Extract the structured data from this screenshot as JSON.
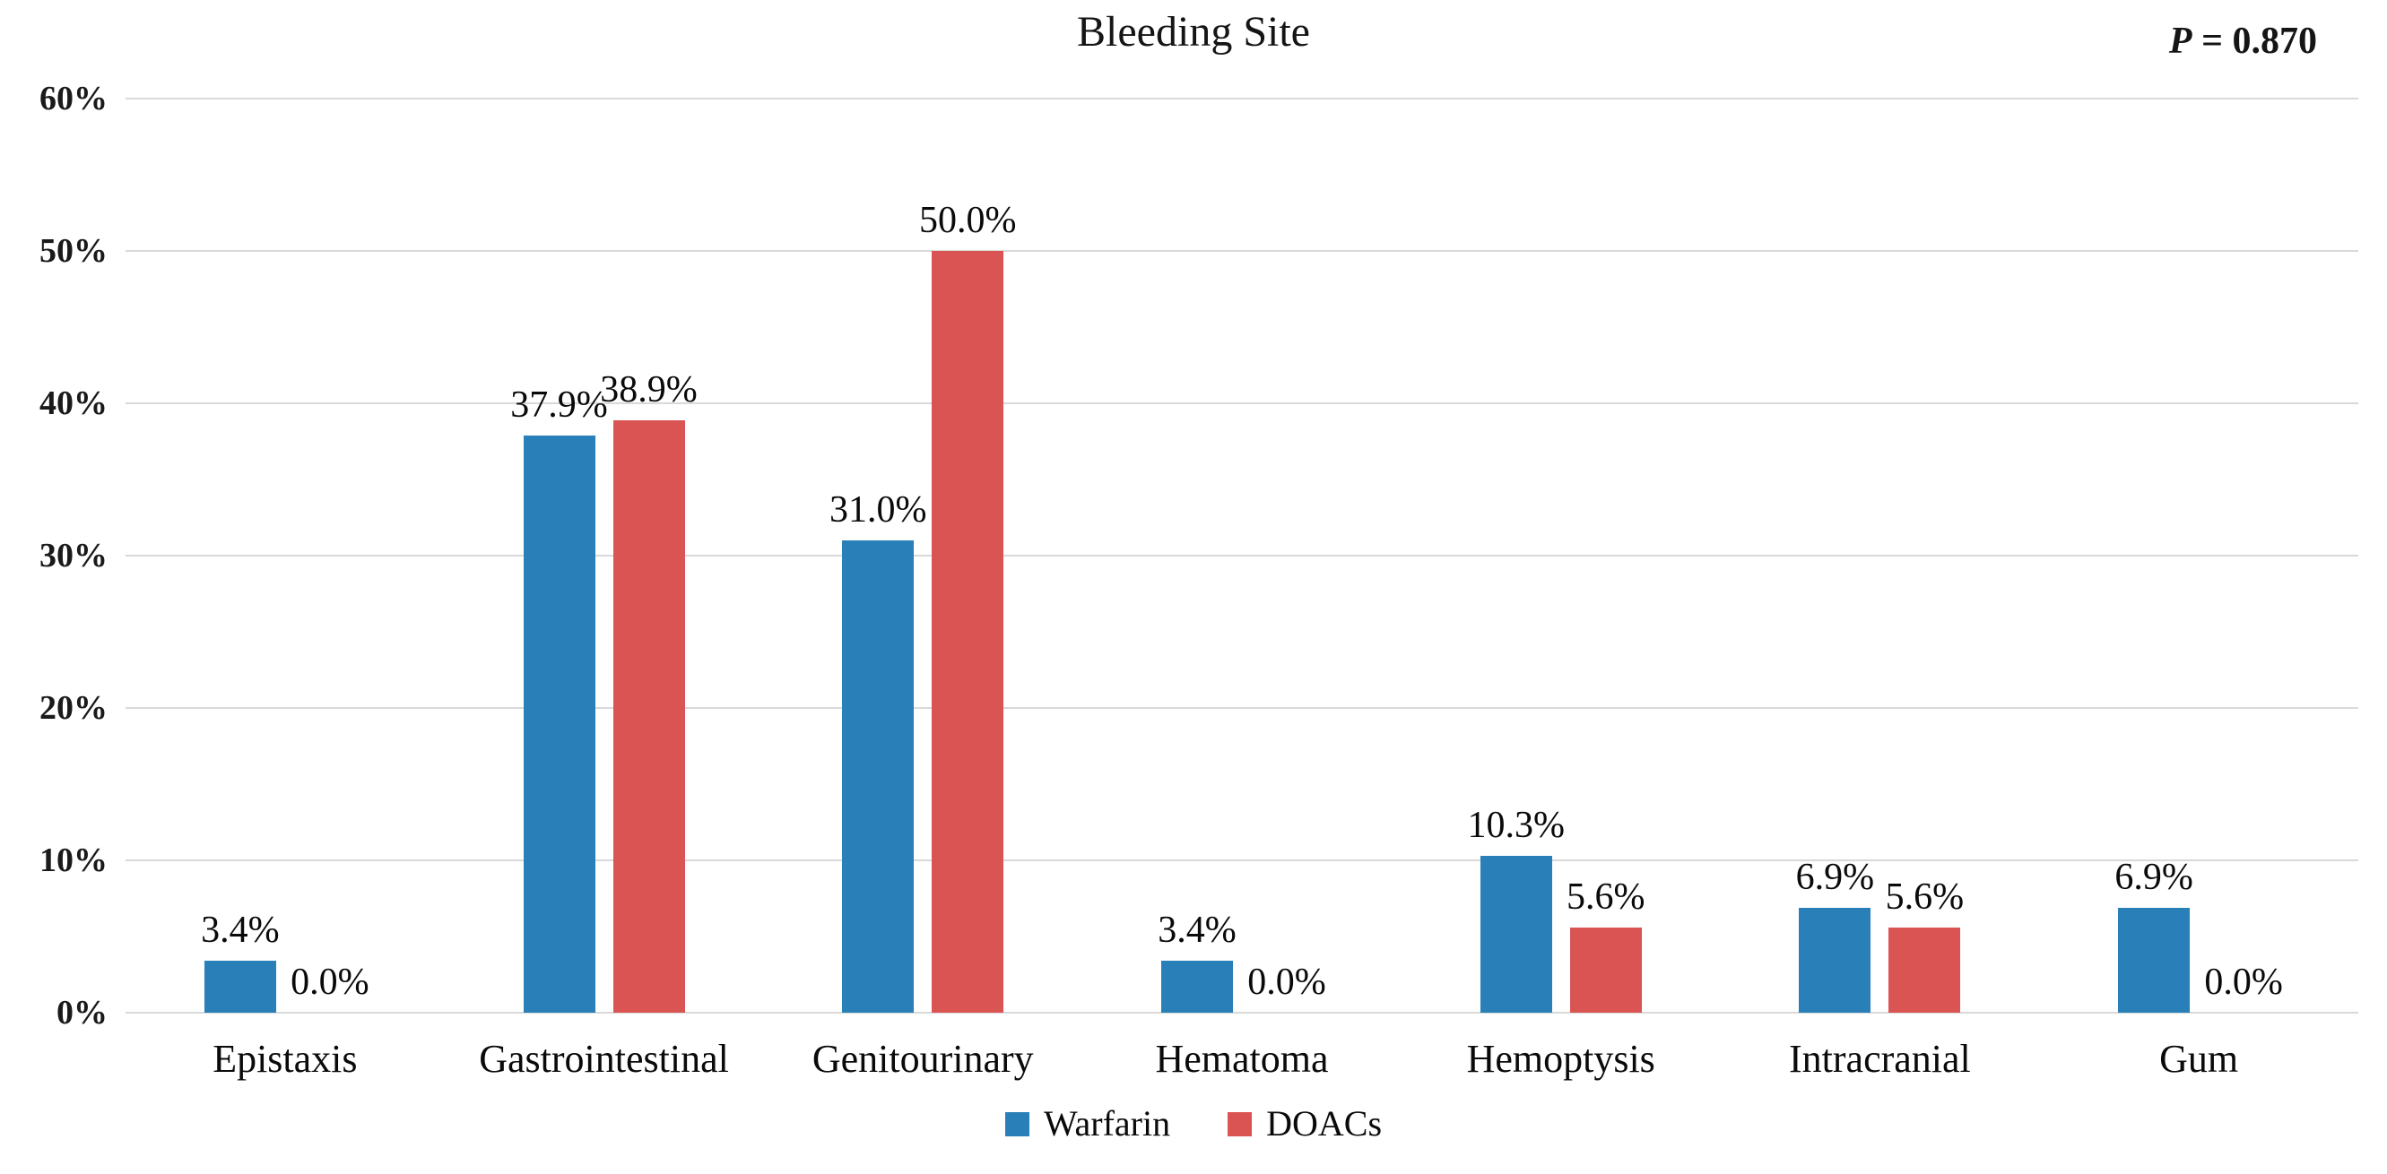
{
  "chart": {
    "title": "Bleeding Site",
    "p_label": "P",
    "p_rest": " = 0.870"
  },
  "chart_data": {
    "type": "bar",
    "title": "Bleeding Site",
    "annotation": "P = 0.870",
    "categories": [
      "Epistaxis",
      "Gastrointestinal",
      "Genitourinary",
      "Hematoma",
      "Hemoptysis",
      "Intracranial",
      "Gum"
    ],
    "series": [
      {
        "name": "Warfarin",
        "color": "#2980B9",
        "values": [
          3.4,
          37.9,
          31.0,
          3.4,
          10.3,
          6.9,
          6.9
        ],
        "labels": [
          "3.4%",
          "37.9%",
          "31.0%",
          "3.4%",
          "10.3%",
          "6.9%",
          "6.9%"
        ]
      },
      {
        "name": "DOACs",
        "color": "#D95452",
        "values": [
          0.0,
          38.9,
          50.0,
          0.0,
          5.6,
          5.6,
          0.0
        ],
        "labels": [
          "0.0%",
          "38.9%",
          "50.0%",
          "0.0%",
          "5.6%",
          "5.6%",
          "0.0%"
        ]
      }
    ],
    "ylim": [
      0,
      60
    ],
    "yticks": [
      "0%",
      "10%",
      "20%",
      "30%",
      "40%",
      "50%",
      "60%"
    ],
    "ytick_values": [
      0,
      10,
      20,
      30,
      40,
      50,
      60
    ],
    "grid": true,
    "gridline_color": "#d9d9d9",
    "legend_position": "bottom"
  }
}
